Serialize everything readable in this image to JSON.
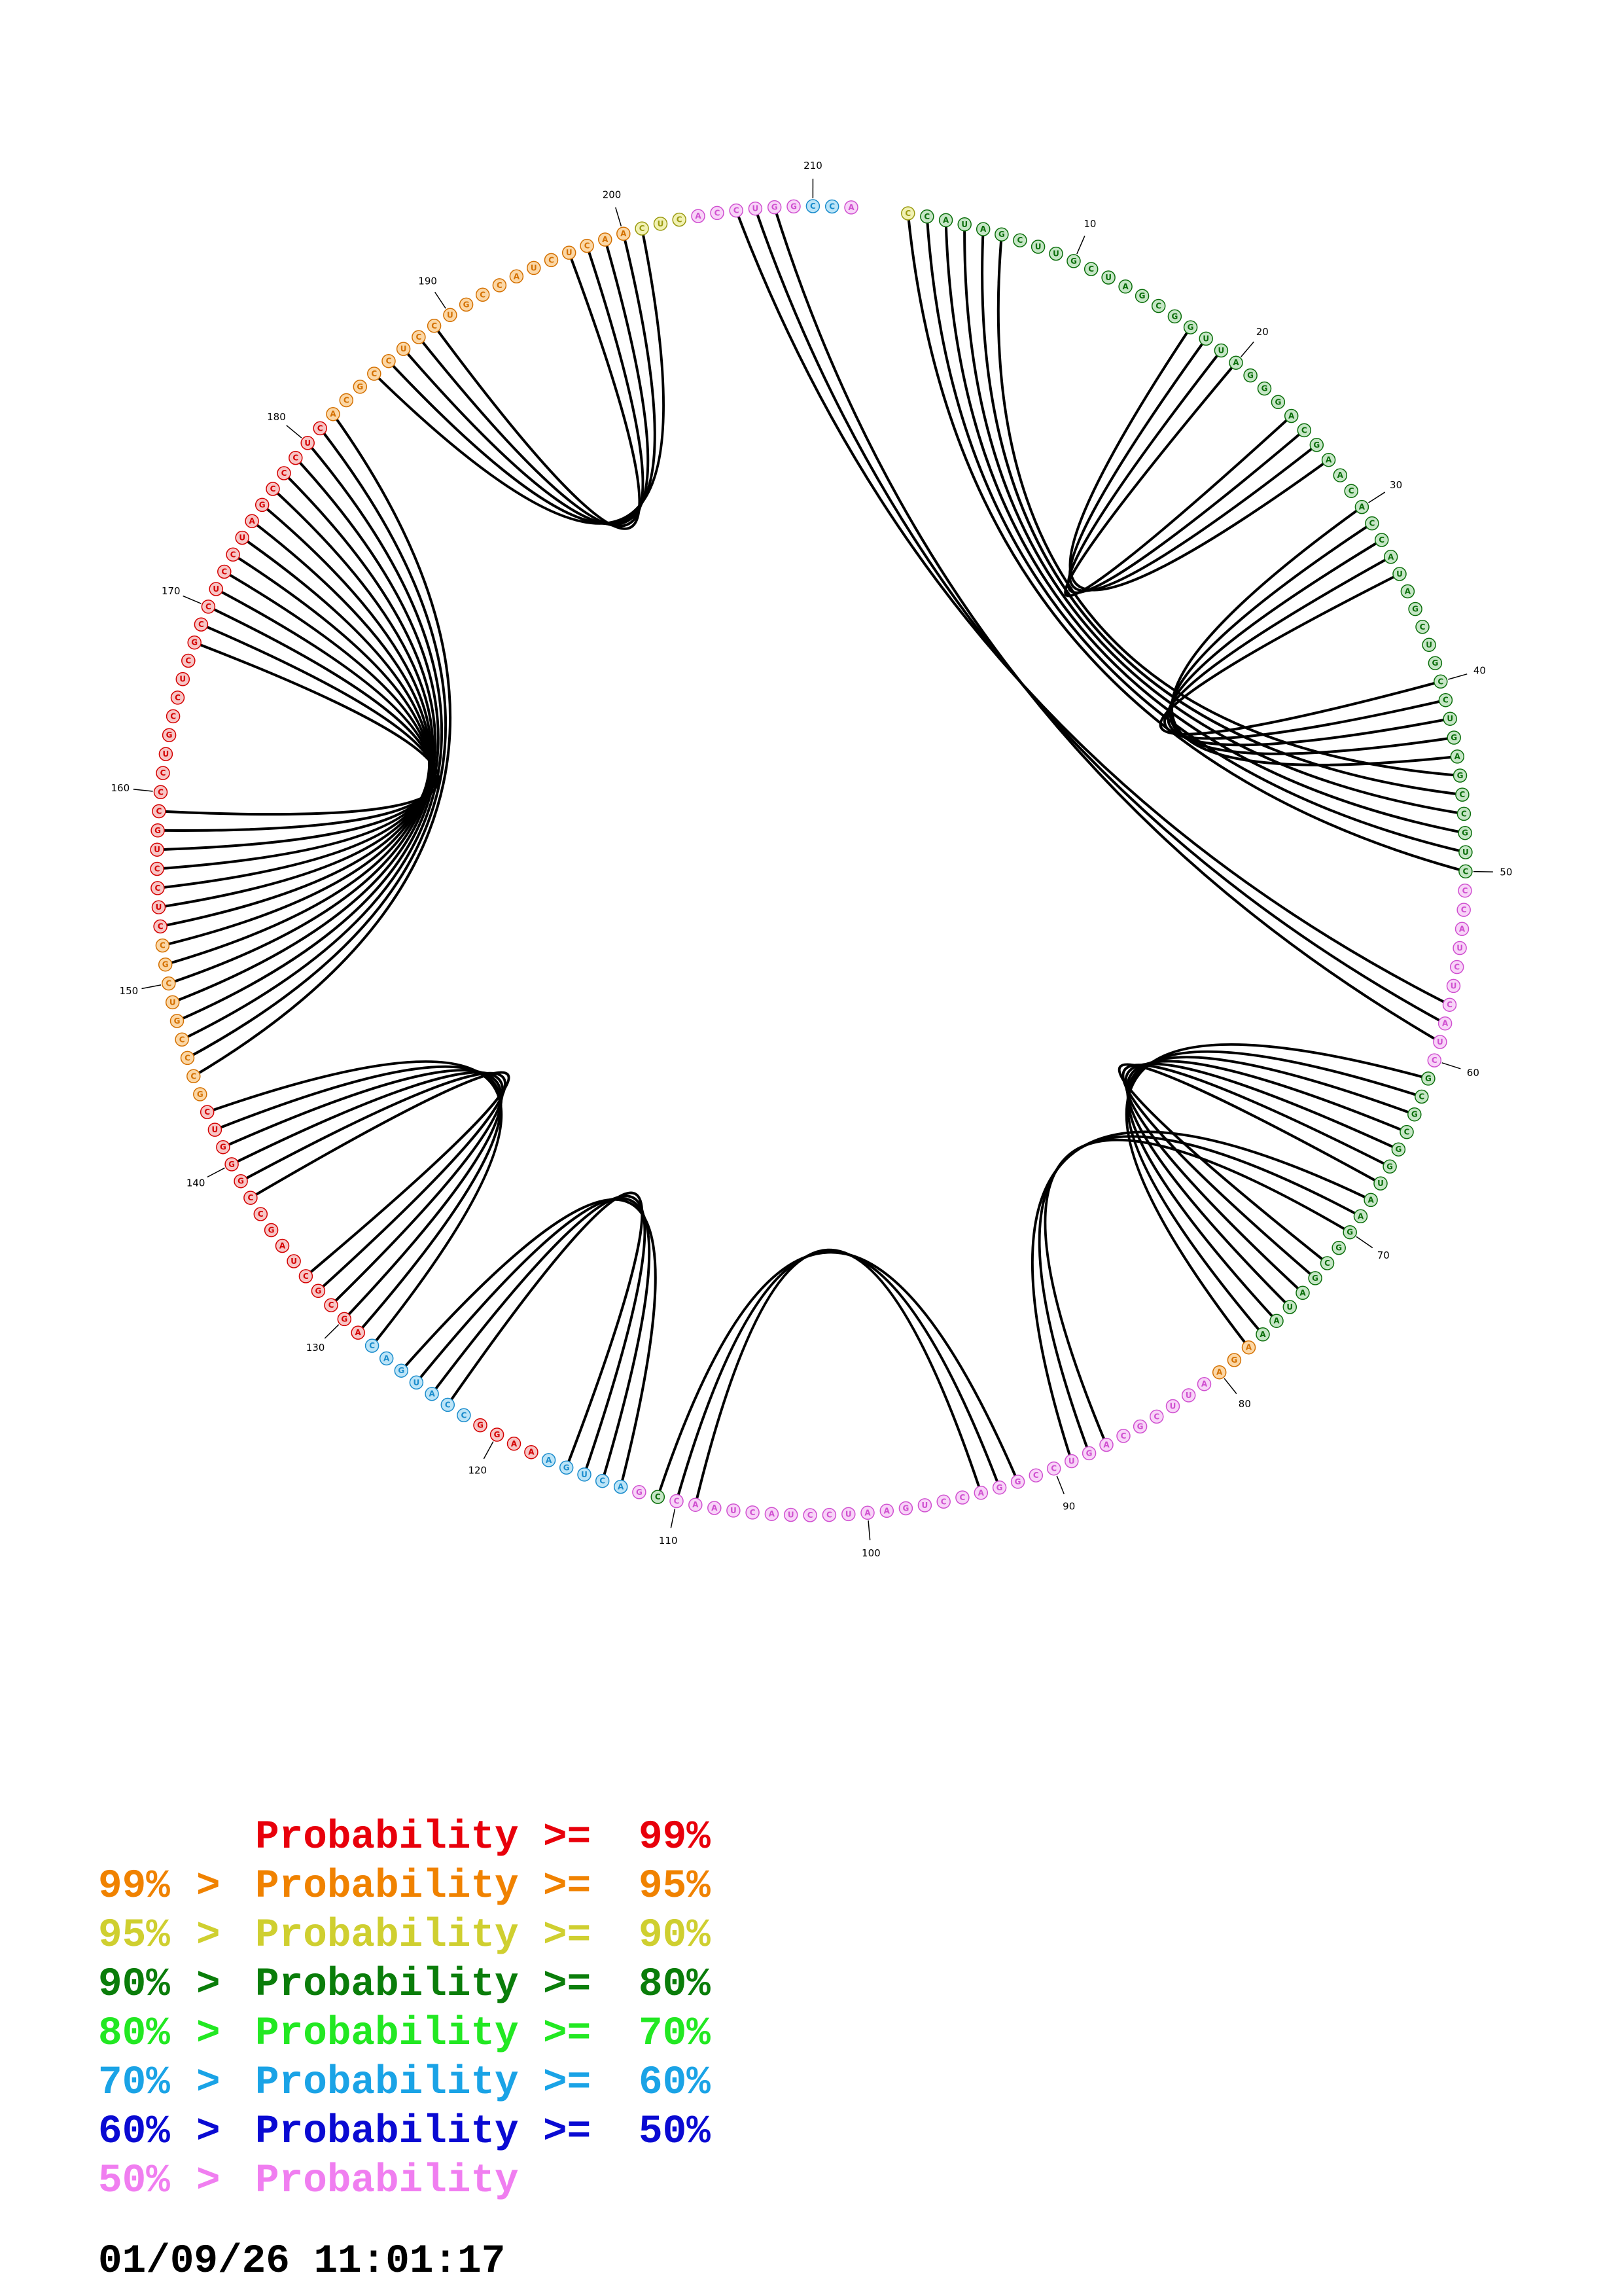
{
  "sequence": "CCAUAGCUUGCUAGCGGUUAGGGACGAACACCAUAGCUGCCUGAGCCGUCCCAUCUCAUCGCGCGGUAAGGCGAUAAAGAAUUCGCAGUCCGGACCUGAAUCCUACUAACCGACUGAAAGGCCAUGACAGCGCUAGCCGGGUCGCCCGUCGCCUCCUGCCCUGCCUCGCCUCCUAGCCCUCACGCCUCCUGCCAUCUCAACUCACCUGGCCA",
  "probability_classes": [
    2,
    3,
    3,
    3,
    3,
    3,
    3,
    3,
    3,
    3,
    3,
    3,
    3,
    3,
    3,
    3,
    3,
    3,
    3,
    3,
    3,
    3,
    3,
    3,
    3,
    3,
    3,
    3,
    3,
    3,
    3,
    3,
    3,
    3,
    3,
    3,
    3,
    3,
    3,
    3,
    3,
    3,
    3,
    3,
    3,
    3,
    3,
    3,
    3,
    3,
    7,
    7,
    7,
    7,
    7,
    7,
    7,
    7,
    7,
    7,
    3,
    3,
    3,
    3,
    3,
    3,
    3,
    3,
    3,
    3,
    3,
    3,
    3,
    3,
    3,
    3,
    3,
    1,
    1,
    1,
    7,
    7,
    7,
    7,
    7,
    7,
    7,
    7,
    7,
    7,
    7,
    7,
    7,
    7,
    7,
    7,
    7,
    7,
    7,
    7,
    7,
    7,
    7,
    7,
    7,
    7,
    7,
    7,
    7,
    7,
    3,
    7,
    5,
    5,
    5,
    5,
    5,
    0,
    0,
    0,
    0,
    5,
    5,
    5,
    5,
    5,
    5,
    5,
    0,
    0,
    0,
    0,
    0,
    0,
    0,
    0,
    0,
    0,
    0,
    0,
    0,
    0,
    0,
    1,
    1,
    1,
    1,
    1,
    1,
    1,
    1,
    1,
    0,
    0,
    0,
    0,
    0,
    0,
    0,
    0,
    0,
    0,
    0,
    0,
    0,
    0,
    0,
    0,
    0,
    0,
    0,
    0,
    0,
    0,
    0,
    0,
    0,
    0,
    0,
    0,
    0,
    1,
    1,
    1,
    1,
    1,
    1,
    1,
    1,
    1,
    1,
    1,
    1,
    1,
    1,
    1,
    1,
    1,
    1,
    1,
    2,
    2,
    2,
    7,
    7,
    7,
    7,
    7,
    7,
    5,
    5
  ],
  "arcs": [
    [
      1,
      50
    ],
    [
      2,
      49
    ],
    [
      3,
      48
    ],
    [
      4,
      47
    ],
    [
      5,
      46
    ],
    [
      6,
      45
    ],
    [
      17,
      27
    ],
    [
      18,
      26
    ],
    [
      19,
      25
    ],
    [
      20,
      24
    ],
    [
      30,
      44
    ],
    [
      31,
      43
    ],
    [
      32,
      42
    ],
    [
      33,
      41
    ],
    [
      34,
      40
    ],
    [
      61,
      78
    ],
    [
      62,
      77
    ],
    [
      63,
      76
    ],
    [
      64,
      75
    ],
    [
      65,
      74
    ],
    [
      66,
      73
    ],
    [
      67,
      72
    ],
    [
      87,
      70
    ],
    [
      88,
      69
    ],
    [
      89,
      68
    ],
    [
      92,
      111
    ],
    [
      93,
      110
    ],
    [
      94,
      109
    ],
    [
      113,
      126
    ],
    [
      114,
      125
    ],
    [
      115,
      124
    ],
    [
      116,
      123
    ],
    [
      128,
      143
    ],
    [
      129,
      142
    ],
    [
      130,
      141
    ],
    [
      131,
      140
    ],
    [
      132,
      139
    ],
    [
      133,
      138
    ],
    [
      145,
      182
    ],
    [
      146,
      181
    ],
    [
      147,
      180
    ],
    [
      148,
      179
    ],
    [
      149,
      178
    ],
    [
      150,
      177
    ],
    [
      151,
      176
    ],
    [
      152,
      175
    ],
    [
      153,
      174
    ],
    [
      154,
      173
    ],
    [
      155,
      172
    ],
    [
      156,
      171
    ],
    [
      157,
      170
    ],
    [
      158,
      169
    ],
    [
      159,
      168
    ],
    [
      185,
      201
    ],
    [
      186,
      200
    ],
    [
      187,
      199
    ],
    [
      188,
      198
    ],
    [
      189,
      197
    ],
    [
      206,
      57
    ],
    [
      207,
      58
    ],
    [
      208,
      59
    ]
  ],
  "position_labels": [
    "10",
    "20",
    "30",
    "40",
    "50",
    "60",
    "70",
    "80",
    "90",
    "100",
    "110",
    "120",
    "130",
    "140",
    "150",
    "160",
    "170",
    "180",
    "190",
    "200",
    "210"
  ],
  "legend": {
    "rows": [
      {
        "lo": "",
        "gt": "",
        "word": "Probability",
        "ge": ">=",
        "hi": "99%",
        "color": "#e8000b"
      },
      {
        "lo": "99%",
        "gt": ">",
        "word": "Probability",
        "ge": ">=",
        "hi": "95%",
        "color": "#f08200"
      },
      {
        "lo": "95%",
        "gt": ">",
        "word": "Probability",
        "ge": ">=",
        "hi": "90%",
        "color": "#cfcf30"
      },
      {
        "lo": "90%",
        "gt": ">",
        "word": "Probability",
        "ge": ">=",
        "hi": "80%",
        "color": "#0a7d0a"
      },
      {
        "lo": "80%",
        "gt": ">",
        "word": "Probability",
        "ge": ">=",
        "hi": "70%",
        "color": "#22e822"
      },
      {
        "lo": "70%",
        "gt": ">",
        "word": "Probability",
        "ge": ">=",
        "hi": "60%",
        "color": "#1aa3e6"
      },
      {
        "lo": "60%",
        "gt": ">",
        "word": "Probability",
        "ge": ">=",
        "hi": "50%",
        "color": "#0a0ad2"
      },
      {
        "lo": "50%",
        "gt": ">",
        "word": "Probability",
        "ge": "",
        "hi": "",
        "color": "#f07ef0"
      }
    ],
    "class_fills": [
      "#f7c6c6",
      "#fbd7a6",
      "#f1f1b3",
      "#c6e6c6",
      "#c8f8c8",
      "#bce4f7",
      "#c4c4f4",
      "#f8d4f8"
    ],
    "class_text": [
      "#d40000",
      "#d47000",
      "#9a9a10",
      "#0a6e0a",
      "#18b818",
      "#1a8ccc",
      "#0a0ad2",
      "#d050d0"
    ]
  },
  "timestamp": "01/09/26 11:01:17"
}
